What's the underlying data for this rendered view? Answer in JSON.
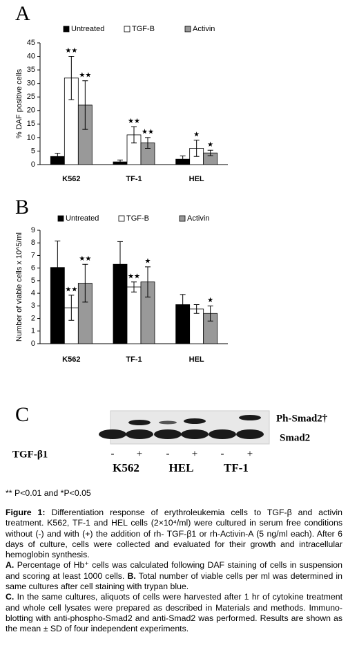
{
  "chart_data": [
    {
      "type": "bar",
      "panel": "A",
      "ylabel": "% DAF positive cells",
      "categories": [
        "K562",
        "TF-1",
        "HEL"
      ],
      "series": [
        {
          "name": "Untreated",
          "color": "#000000",
          "values": [
            3,
            1,
            2
          ],
          "errors": [
            1.2,
            0.7,
            1.2
          ],
          "significance": [
            null,
            null,
            null
          ]
        },
        {
          "name": "TGF-B",
          "color": "#ffffff",
          "values": [
            32,
            11,
            6
          ],
          "errors": [
            8,
            3,
            3
          ],
          "significance": [
            "★★",
            "★★",
            "★"
          ]
        },
        {
          "name": "Activin",
          "color": "#999999",
          "values": [
            22,
            8,
            4.3
          ],
          "errors": [
            9,
            2,
            1
          ],
          "significance": [
            "★★",
            "★★",
            "★"
          ]
        }
      ],
      "ylim": [
        0,
        45
      ],
      "yticks": [
        0,
        5,
        10,
        15,
        20,
        25,
        30,
        35,
        40,
        45
      ],
      "grid": false
    },
    {
      "type": "bar",
      "panel": "B",
      "ylabel": "Number of viable cells x 10^5/ml",
      "categories": [
        "K562",
        "TF-1",
        "HEL"
      ],
      "series": [
        {
          "name": "Untreated",
          "color": "#000000",
          "values": [
            6.05,
            6.3,
            3.1
          ],
          "errors": [
            2.1,
            1.8,
            0.8
          ],
          "significance": [
            null,
            null,
            null
          ]
        },
        {
          "name": "TGF-B",
          "color": "#ffffff",
          "values": [
            2.85,
            4.5,
            2.75
          ],
          "errors": [
            1.0,
            0.4,
            0.35
          ],
          "significance": [
            "★★",
            "★★",
            null
          ]
        },
        {
          "name": "Activin",
          "color": "#999999",
          "values": [
            4.8,
            4.9,
            2.4
          ],
          "errors": [
            1.5,
            1.2,
            0.6
          ],
          "significance": [
            "★★",
            "★",
            "★"
          ]
        }
      ],
      "ylim": [
        0,
        9
      ],
      "yticks": [
        0,
        1,
        2,
        3,
        4,
        5,
        6,
        7,
        8,
        9
      ],
      "grid": false
    }
  ],
  "blot": {
    "panel": "C",
    "bands": [
      "Ph-Smad2†",
      "Smad2"
    ],
    "treatment": "TGF-β1",
    "signs": [
      "-",
      "+",
      "-",
      "+",
      "-",
      "+"
    ],
    "groups": [
      "K562",
      "HEL",
      "TF-1"
    ]
  },
  "footnote": "** P<0.01 and *P<0.05",
  "caption": {
    "title": "Figure 1:",
    "text": " Differentiation response of erythroleukemia cells to TGF-β and activin treatment. K562, TF-1 and HEL cells (2×10⁴/ml) were cultured in serum free conditions without (-) and with (+) the addition of rh- TGF-β1 or rh-Activin-A (5 ng/ml each). After 6 days of culture, cells were collected and evaluated for their growth and intracellular hemoglobin synthesis.",
    "items": [
      {
        "label": "A.",
        "text": " Percentage of Hb⁺ cells was calculated following DAF staining of cells in suspension and scoring at least 1000 cells. "
      },
      {
        "label": "B.",
        "text": " Total number of viable cells per ml was determined in same cultures after cell staining with trypan blue."
      },
      {
        "label": "C.",
        "text": " In the same cultures, aliquots of cells were harvested after 1 hr of cytokine treatment and whole cell lysates were prepared as described in Materials and methods. Immuno-blotting with anti-phospho-Smad2 and anti-Smad2 was performed. Results are shown as the mean ± SD of four independent experiments."
      }
    ]
  }
}
